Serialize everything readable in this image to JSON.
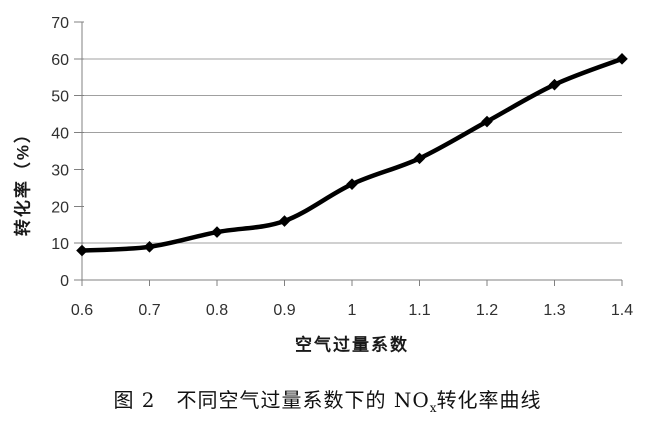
{
  "chart_data": {
    "type": "line",
    "x": [
      0.6,
      0.7,
      0.8,
      0.9,
      1,
      1.1,
      1.2,
      1.3,
      1.4
    ],
    "x_tick_labels": [
      "0.6",
      "0.7",
      "0.8",
      "0.9",
      "1",
      "1.1",
      "1.2",
      "1.3",
      "1.4"
    ],
    "series": [
      {
        "values": [
          8,
          9,
          13,
          16,
          26,
          33,
          43,
          53,
          60
        ],
        "marker": "diamond",
        "smooth": true
      }
    ],
    "xlabel": "空气过量系数",
    "ylabel": "转化率（%）",
    "xlim": [
      0.6,
      1.4
    ],
    "ylim": [
      0,
      70
    ],
    "y_ticks": [
      0,
      10,
      20,
      30,
      40,
      50,
      60,
      70
    ],
    "gridlines_at": [
      10,
      40,
      50,
      60
    ],
    "legend": "none",
    "colors": {
      "line": "#000000",
      "marker": "#000000",
      "gridline": "#a0a0a0",
      "axis": "#808080",
      "tick_text": "#303030"
    }
  },
  "caption": {
    "prefix": "图 2　不同空气过量系数下的 NO",
    "subscript": "x",
    "suffix": "转化率曲线"
  }
}
